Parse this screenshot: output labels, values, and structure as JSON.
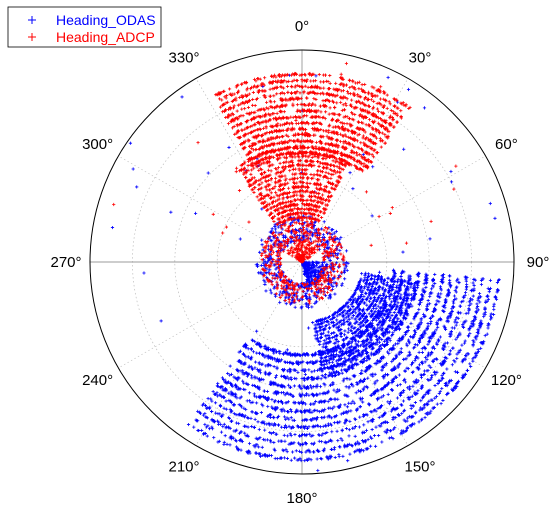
{
  "chart_data": {
    "type": "scatter",
    "polar": true,
    "angular_direction": "clockwise",
    "zero_location": "top",
    "angle_ticks": [
      0,
      30,
      60,
      90,
      120,
      150,
      180,
      210,
      240,
      270,
      300,
      330
    ],
    "angle_tick_labels": [
      "0°",
      "30°",
      "60°",
      "90°",
      "120°",
      "150°",
      "180°",
      "210°",
      "240°",
      "270°",
      "300°",
      "330°"
    ],
    "radial_grid": "dotted circles, no radial tick labels",
    "legend_position": "top-left",
    "series": [
      {
        "name": "Heading_ODAS",
        "color": "#0000ff",
        "marker": "+",
        "clusters": [
          {
            "theta_range": [
              95,
              215
            ],
            "r_range": [
              0.42,
              0.95
            ],
            "count": 2600,
            "description": "dense outer arcs"
          },
          {
            "theta_range": [
              100,
              170
            ],
            "r_range": [
              0.28,
              0.55
            ],
            "count": 1000,
            "description": "dense inner band"
          },
          {
            "theta_range": [
              0,
              360
            ],
            "r_range": [
              0.1,
              0.22
            ],
            "count": 500,
            "description": "near-center rings"
          },
          {
            "theta_range": [
              90,
              170
            ],
            "r_range": [
              0.0,
              0.12
            ],
            "count": 220,
            "description": "core near center"
          },
          {
            "theta_range": [
              0,
              360
            ],
            "r_range": [
              0.3,
              1.0
            ],
            "count": 60,
            "description": "sparse scatter"
          }
        ]
      },
      {
        "name": "Heading_ADCP",
        "color": "#ff0000",
        "marker": "+",
        "clusters": [
          {
            "theta_range": [
              -28,
              35
            ],
            "r_range": [
              0.5,
              0.9
            ],
            "count": 1600,
            "description": "dense outer arcs"
          },
          {
            "theta_range": [
              -35,
              25
            ],
            "r_range": [
              0.2,
              0.55
            ],
            "count": 900,
            "description": "dense inner band"
          },
          {
            "theta_range": [
              0,
              360
            ],
            "r_range": [
              0.1,
              0.2
            ],
            "count": 400,
            "description": "near-center rings"
          },
          {
            "theta_range": [
              -60,
              60
            ],
            "r_range": [
              0.0,
              0.1
            ],
            "count": 150,
            "description": "core near center"
          },
          {
            "theta_range": [
              -80,
              80
            ],
            "r_range": [
              0.3,
              1.0
            ],
            "count": 40,
            "description": "sparse scatter"
          }
        ]
      }
    ]
  }
}
